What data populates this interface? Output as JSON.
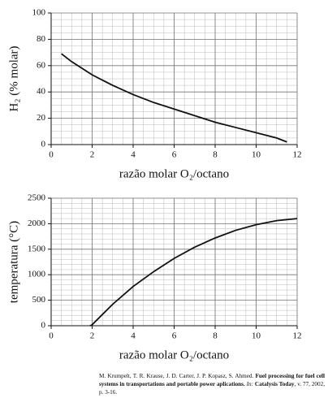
{
  "chart_data": [
    {
      "type": "line",
      "x_label": "razão molar O₂/octano",
      "y_label": "H₂ (% molar)",
      "x": [
        0.5,
        1,
        2,
        3,
        4,
        5,
        6,
        7,
        8,
        9,
        10,
        11,
        11.5
      ],
      "values": [
        69,
        63,
        53,
        45,
        38,
        32,
        27,
        22,
        17,
        13,
        9,
        5,
        2
      ],
      "color": "#111111",
      "xlim": [
        0,
        12
      ],
      "ylim": [
        0,
        100
      ],
      "xticks": [
        0,
        2,
        4,
        6,
        8,
        10,
        12
      ],
      "yticks": [
        0,
        20,
        40,
        60,
        80,
        100
      ],
      "grid": true,
      "minor_grid_step": {
        "x": 0.5,
        "y": 5
      }
    },
    {
      "type": "line",
      "x_label": "razão molar O₂/octano",
      "y_label": "temperatura (°C)",
      "x": [
        1.9,
        2,
        3,
        4,
        5,
        6,
        7,
        8,
        9,
        10,
        11,
        12
      ],
      "values": [
        0,
        20,
        420,
        770,
        1060,
        1320,
        1540,
        1720,
        1870,
        1980,
        2060,
        2100
      ],
      "color": "#111111",
      "xlim": [
        0,
        12
      ],
      "ylim": [
        0,
        2500
      ],
      "xticks": [
        0,
        2,
        4,
        6,
        8,
        10,
        12
      ],
      "yticks": [
        0,
        500,
        1000,
        1500,
        2000,
        2500
      ],
      "grid": true,
      "minor_grid_step": {
        "x": 0.5,
        "y": 100
      }
    }
  ],
  "citation": {
    "authors": "M. Krumpelt, T. R. Krause, J. D. Carter, J. P. Kopasz, S. Ahmed.",
    "title": "Fuel processing for fuel cell systems in transportations and portable power aplications.",
    "in": "In:",
    "journal": "Catalysis Today",
    "details": ", v. 77, 2002, p. 3-16."
  }
}
